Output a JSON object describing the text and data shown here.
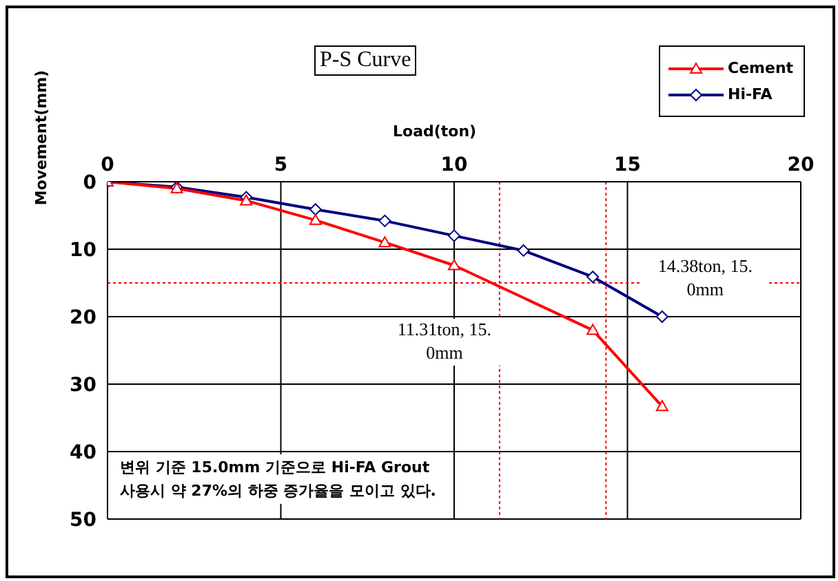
{
  "chart_data": {
    "type": "line",
    "title": "P-S Curve",
    "xlabel": "Load(ton)",
    "ylabel": "Movement(mm)",
    "xlim": [
      0,
      20
    ],
    "xticks": [
      0,
      5,
      10,
      15,
      20
    ],
    "ylim": [
      50,
      0
    ],
    "yticks": [
      0,
      10,
      20,
      30,
      40,
      50
    ],
    "grid": true,
    "legend": "top right",
    "line_style": "solid",
    "series": [
      {
        "name": "Cement",
        "color": "#ff0000",
        "marker": "triangle",
        "x": [
          0,
          2,
          4,
          6,
          8,
          10,
          14,
          16
        ],
        "values": [
          0,
          1,
          2.8,
          5.7,
          9,
          12.4,
          22,
          33.3
        ]
      },
      {
        "name": "Hi-FA",
        "color": "#000080",
        "marker": "diamond",
        "x": [
          0,
          2,
          4,
          6,
          8,
          10,
          12,
          14,
          16
        ],
        "values": [
          0,
          0.8,
          2.3,
          4.1,
          5.8,
          8,
          10.2,
          14.1,
          20
        ]
      }
    ],
    "ref_lines": [
      {
        "axis": "y",
        "value": 15,
        "color": "#ff0000",
        "line_style": "dotted"
      },
      {
        "axis": "x",
        "value": 11.31,
        "color": "#ff0000",
        "line_style": "dotted"
      },
      {
        "axis": "x",
        "value": 14.38,
        "color": "#ff0000",
        "line_style": "dotted"
      }
    ],
    "annotations": [
      {
        "text": "11.31ton, 15.\n0mm",
        "x": 11.31,
        "y": 15
      },
      {
        "text": "14.38ton, 15.\n0mm",
        "x": 14.38,
        "y": 15
      },
      "변위 기준 15.0mm 기준으로 Hi-FA Grout\n사용시 약 27%의 하중 증가율을 모이고 있다."
    ]
  }
}
